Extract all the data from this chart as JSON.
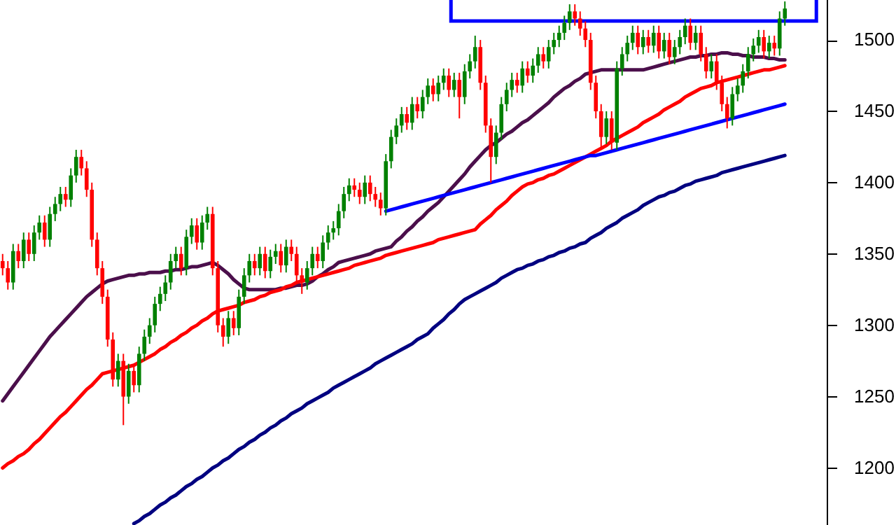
{
  "chart_data": {
    "type": "candlestick",
    "categories": [
      null,
      null,
      null,
      null,
      null,
      null,
      null,
      null,
      null,
      null,
      null,
      null,
      null,
      null,
      null,
      null,
      null,
      null,
      null,
      null,
      null,
      null,
      null,
      null,
      null,
      null,
      null,
      null,
      null,
      null,
      null,
      null,
      null,
      null,
      null,
      null,
      null,
      null,
      null,
      null,
      null,
      null,
      null,
      null,
      null,
      null,
      null,
      null,
      null,
      null,
      null,
      null,
      null,
      null,
      null,
      null,
      null,
      null,
      null,
      null,
      null,
      null,
      null,
      null,
      null,
      null,
      null,
      null,
      null,
      null,
      null,
      null,
      null,
      null,
      null,
      null,
      null,
      null,
      null,
      null,
      null,
      null,
      null,
      null,
      null,
      null,
      null,
      null,
      null,
      null,
      null,
      null,
      null,
      null,
      null,
      null,
      null,
      null,
      null,
      null,
      null,
      null,
      null,
      null,
      null,
      null,
      null,
      null,
      null,
      null,
      null,
      null,
      null,
      null,
      null,
      null,
      null,
      null,
      null,
      null,
      null,
      null,
      null,
      null,
      null,
      null,
      null,
      null,
      null,
      null,
      null,
      null,
      null,
      null,
      null,
      null,
      null,
      null,
      null,
      null,
      null,
      null,
      null,
      null,
      null,
      null,
      null,
      null,
      null,
      null
    ],
    "ohlc": [
      [
        1345,
        1350,
        1335,
        1340
      ],
      [
        1340,
        1345,
        1325,
        1330
      ],
      [
        1330,
        1357,
        1325,
        1352
      ],
      [
        1352,
        1357,
        1340,
        1345
      ],
      [
        1345,
        1365,
        1340,
        1360
      ],
      [
        1360,
        1365,
        1345,
        1350
      ],
      [
        1350,
        1370,
        1345,
        1365
      ],
      [
        1365,
        1377,
        1360,
        1372
      ],
      [
        1372,
        1377,
        1355,
        1360
      ],
      [
        1360,
        1383,
        1355,
        1378
      ],
      [
        1378,
        1390,
        1373,
        1385
      ],
      [
        1385,
        1397,
        1380,
        1392
      ],
      [
        1392,
        1397,
        1383,
        1388
      ],
      [
        1388,
        1410,
        1383,
        1405
      ],
      [
        1405,
        1423,
        1400,
        1418
      ],
      [
        1418,
        1423,
        1405,
        1410
      ],
      [
        1410,
        1415,
        1390,
        1395
      ],
      [
        1395,
        1400,
        1355,
        1360
      ],
      [
        1360,
        1365,
        1335,
        1340
      ],
      [
        1340,
        1345,
        1315,
        1320
      ],
      [
        1320,
        1325,
        1285,
        1290
      ],
      [
        1290,
        1295,
        1257,
        1262
      ],
      [
        1262,
        1280,
        1257,
        1275
      ],
      [
        1275,
        1280,
        1230,
        1250
      ],
      [
        1250,
        1273,
        1245,
        1268
      ],
      [
        1268,
        1273,
        1253,
        1258
      ],
      [
        1258,
        1285,
        1253,
        1280
      ],
      [
        1280,
        1297,
        1275,
        1292
      ],
      [
        1292,
        1305,
        1287,
        1300
      ],
      [
        1300,
        1320,
        1295,
        1315
      ],
      [
        1315,
        1327,
        1310,
        1322
      ],
      [
        1322,
        1335,
        1317,
        1330
      ],
      [
        1330,
        1350,
        1325,
        1345
      ],
      [
        1345,
        1355,
        1340,
        1350
      ],
      [
        1350,
        1355,
        1335,
        1340
      ],
      [
        1340,
        1367,
        1335,
        1362
      ],
      [
        1362,
        1375,
        1357,
        1370
      ],
      [
        1370,
        1375,
        1353,
        1358
      ],
      [
        1358,
        1377,
        1353,
        1372
      ],
      [
        1372,
        1383,
        1367,
        1378
      ],
      [
        1378,
        1383,
        1335,
        1340
      ],
      [
        1340,
        1345,
        1295,
        1300
      ],
      [
        1300,
        1305,
        1285,
        1292
      ],
      [
        1292,
        1310,
        1287,
        1305
      ],
      [
        1305,
        1310,
        1293,
        1298
      ],
      [
        1298,
        1325,
        1293,
        1320
      ],
      [
        1320,
        1340,
        1315,
        1335
      ],
      [
        1335,
        1350,
        1330,
        1345
      ],
      [
        1345,
        1350,
        1335,
        1340
      ],
      [
        1340,
        1355,
        1335,
        1350
      ],
      [
        1350,
        1355,
        1333,
        1338
      ],
      [
        1338,
        1353,
        1333,
        1348
      ],
      [
        1348,
        1357,
        1343,
        1352
      ],
      [
        1352,
        1357,
        1337,
        1342
      ],
      [
        1342,
        1360,
        1337,
        1355
      ],
      [
        1355,
        1360,
        1345,
        1350
      ],
      [
        1350,
        1355,
        1330,
        1335
      ],
      [
        1335,
        1340,
        1322,
        1330
      ],
      [
        1330,
        1345,
        1325,
        1340
      ],
      [
        1340,
        1355,
        1335,
        1350
      ],
      [
        1350,
        1355,
        1340,
        1345
      ],
      [
        1345,
        1363,
        1340,
        1358
      ],
      [
        1358,
        1370,
        1353,
        1365
      ],
      [
        1365,
        1373,
        1360,
        1368
      ],
      [
        1368,
        1385,
        1363,
        1380
      ],
      [
        1380,
        1397,
        1375,
        1392
      ],
      [
        1392,
        1403,
        1387,
        1398
      ],
      [
        1398,
        1403,
        1390,
        1395
      ],
      [
        1395,
        1400,
        1385,
        1390
      ],
      [
        1390,
        1405,
        1385,
        1400
      ],
      [
        1400,
        1405,
        1387,
        1392
      ],
      [
        1392,
        1397,
        1383,
        1388
      ],
      [
        1388,
        1393,
        1377,
        1382
      ],
      [
        1382,
        1420,
        1377,
        1415
      ],
      [
        1415,
        1437,
        1410,
        1432
      ],
      [
        1432,
        1445,
        1427,
        1440
      ],
      [
        1440,
        1453,
        1435,
        1448
      ],
      [
        1448,
        1453,
        1437,
        1442
      ],
      [
        1442,
        1460,
        1437,
        1455
      ],
      [
        1455,
        1460,
        1445,
        1450
      ],
      [
        1450,
        1465,
        1445,
        1460
      ],
      [
        1460,
        1473,
        1455,
        1468
      ],
      [
        1468,
        1473,
        1457,
        1462
      ],
      [
        1462,
        1475,
        1457,
        1470
      ],
      [
        1470,
        1480,
        1465,
        1475
      ],
      [
        1475,
        1480,
        1460,
        1465
      ],
      [
        1465,
        1477,
        1460,
        1472
      ],
      [
        1472,
        1477,
        1445,
        1460
      ],
      [
        1460,
        1483,
        1455,
        1478
      ],
      [
        1478,
        1490,
        1473,
        1485
      ],
      [
        1485,
        1503,
        1480,
        1495
      ],
      [
        1495,
        1500,
        1465,
        1470
      ],
      [
        1470,
        1475,
        1435,
        1440
      ],
      [
        1440,
        1445,
        1400,
        1418
      ],
      [
        1418,
        1440,
        1413,
        1435
      ],
      [
        1435,
        1460,
        1430,
        1455
      ],
      [
        1455,
        1470,
        1450,
        1465
      ],
      [
        1465,
        1477,
        1460,
        1472
      ],
      [
        1472,
        1477,
        1463,
        1468
      ],
      [
        1468,
        1485,
        1463,
        1480
      ],
      [
        1480,
        1485,
        1470,
        1475
      ],
      [
        1475,
        1487,
        1470,
        1482
      ],
      [
        1482,
        1495,
        1477,
        1490
      ],
      [
        1490,
        1495,
        1480,
        1485
      ],
      [
        1485,
        1500,
        1480,
        1495
      ],
      [
        1495,
        1505,
        1490,
        1500
      ],
      [
        1500,
        1510,
        1495,
        1505
      ],
      [
        1505,
        1517,
        1500,
        1512
      ],
      [
        1512,
        1525,
        1507,
        1520
      ],
      [
        1520,
        1525,
        1510,
        1515
      ],
      [
        1515,
        1520,
        1503,
        1508
      ],
      [
        1508,
        1513,
        1495,
        1500
      ],
      [
        1500,
        1505,
        1465,
        1470
      ],
      [
        1470,
        1475,
        1445,
        1450
      ],
      [
        1450,
        1455,
        1425,
        1432
      ],
      [
        1432,
        1450,
        1427,
        1445
      ],
      [
        1445,
        1450,
        1423,
        1428
      ],
      [
        1428,
        1485,
        1423,
        1480
      ],
      [
        1480,
        1495,
        1475,
        1490
      ],
      [
        1490,
        1503,
        1485,
        1498
      ],
      [
        1498,
        1510,
        1493,
        1505
      ],
      [
        1505,
        1510,
        1490,
        1495
      ],
      [
        1495,
        1507,
        1490,
        1502
      ],
      [
        1502,
        1507,
        1491,
        1496
      ],
      [
        1496,
        1510,
        1491,
        1505
      ],
      [
        1505,
        1510,
        1487,
        1492
      ],
      [
        1492,
        1505,
        1487,
        1500
      ],
      [
        1500,
        1505,
        1483,
        1488
      ],
      [
        1488,
        1500,
        1483,
        1495
      ],
      [
        1495,
        1507,
        1490,
        1502
      ],
      [
        1502,
        1515,
        1497,
        1510
      ],
      [
        1510,
        1515,
        1493,
        1498
      ],
      [
        1498,
        1510,
        1493,
        1505
      ],
      [
        1505,
        1510,
        1485,
        1490
      ],
      [
        1490,
        1495,
        1473,
        1478
      ],
      [
        1478,
        1490,
        1473,
        1485
      ],
      [
        1485,
        1490,
        1465,
        1470
      ],
      [
        1470,
        1475,
        1450,
        1455
      ],
      [
        1455,
        1460,
        1438,
        1445
      ],
      [
        1445,
        1467,
        1440,
        1462
      ],
      [
        1462,
        1473,
        1457,
        1468
      ],
      [
        1468,
        1483,
        1463,
        1478
      ],
      [
        1478,
        1495,
        1473,
        1490
      ],
      [
        1490,
        1501,
        1485,
        1496
      ],
      [
        1496,
        1507,
        1491,
        1502
      ],
      [
        1502,
        1507,
        1487,
        1492
      ],
      [
        1492,
        1503,
        1487,
        1498
      ],
      [
        1498,
        1503,
        1489,
        1494
      ],
      [
        1494,
        1520,
        1489,
        1515
      ],
      [
        1515,
        1527,
        1510,
        1522
      ]
    ],
    "series": [
      {
        "type": "line",
        "color": "#4b0f4b",
        "values": [
          1247,
          1252,
          1257,
          1262,
          1267,
          1272,
          1277,
          1282,
          1287,
          1292,
          1296,
          1300,
          1304,
          1308,
          1312,
          1316,
          1320,
          1323,
          1326,
          1329,
          1331,
          1332,
          1333,
          1334,
          1335,
          1335,
          1336,
          1336,
          1337,
          1337,
          1337,
          1338,
          1338,
          1339,
          1339,
          1340,
          1341,
          1341,
          1342,
          1343,
          1344,
          1342,
          1339,
          1336,
          1332,
          1329,
          1326,
          1325,
          1325,
          1325,
          1325,
          1325,
          1325,
          1326,
          1326,
          1327,
          1328,
          1328,
          1329,
          1331,
          1334,
          1336,
          1339,
          1341,
          1344,
          1345,
          1346,
          1347,
          1348,
          1349,
          1350,
          1352,
          1353,
          1354,
          1355,
          1359,
          1362,
          1366,
          1369,
          1373,
          1376,
          1380,
          1383,
          1386,
          1390,
          1394,
          1398,
          1402,
          1406,
          1411,
          1415,
          1419,
          1423,
          1426,
          1428,
          1431,
          1434,
          1436,
          1439,
          1442,
          1444,
          1447,
          1450,
          1453,
          1456,
          1460,
          1463,
          1466,
          1468,
          1471,
          1473,
          1476,
          1477,
          1478,
          1479,
          1479,
          1479,
          1479,
          1479,
          1479,
          1479,
          1479,
          1479,
          1480,
          1481,
          1482,
          1483,
          1484,
          1485,
          1486,
          1487,
          1488,
          1488,
          1489,
          1489,
          1490,
          1490,
          1491,
          1491,
          1490,
          1490,
          1489,
          1489,
          1488,
          1488,
          1488,
          1487,
          1487,
          1486,
          1486
        ]
      },
      {
        "type": "line",
        "color": "#ff0000",
        "values": [
          1200,
          1203,
          1205,
          1208,
          1210,
          1213,
          1217,
          1220,
          1224,
          1228,
          1232,
          1236,
          1239,
          1243,
          1247,
          1251,
          1255,
          1258,
          1262,
          1266,
          1267,
          1268,
          1269,
          1270,
          1271,
          1272,
          1274,
          1276,
          1278,
          1280,
          1283,
          1285,
          1288,
          1290,
          1293,
          1295,
          1298,
          1300,
          1303,
          1305,
          1308,
          1310,
          1311,
          1312,
          1313,
          1314,
          1316,
          1317,
          1318,
          1320,
          1321,
          1323,
          1324,
          1325,
          1327,
          1328,
          1330,
          1331,
          1332,
          1333,
          1334,
          1335,
          1336,
          1337,
          1338,
          1339,
          1340,
          1342,
          1343,
          1344,
          1345,
          1346,
          1347,
          1349,
          1350,
          1351,
          1352,
          1353,
          1354,
          1355,
          1356,
          1357,
          1358,
          1360,
          1361,
          1362,
          1363,
          1364,
          1365,
          1366,
          1367,
          1371,
          1374,
          1377,
          1381,
          1384,
          1387,
          1391,
          1394,
          1397,
          1399,
          1400,
          1402,
          1403,
          1405,
          1406,
          1408,
          1410,
          1412,
          1414,
          1416,
          1418,
          1420,
          1422,
          1424,
          1426,
          1429,
          1431,
          1433,
          1435,
          1437,
          1439,
          1442,
          1444,
          1446,
          1448,
          1451,
          1453,
          1455,
          1457,
          1460,
          1462,
          1464,
          1466,
          1467,
          1468,
          1470,
          1471,
          1472,
          1473,
          1474,
          1475,
          1476,
          1477,
          1478,
          1479,
          1479,
          1480,
          1481,
          1482
        ]
      },
      {
        "type": "line",
        "color": "#000080",
        "values": [
          null,
          null,
          null,
          null,
          null,
          null,
          null,
          null,
          null,
          null,
          null,
          null,
          null,
          null,
          null,
          null,
          null,
          null,
          null,
          null,
          null,
          null,
          null,
          null,
          null,
          1161,
          1163,
          1166,
          1168,
          1171,
          1174,
          1176,
          1179,
          1181,
          1184,
          1187,
          1189,
          1192,
          1194,
          1197,
          1200,
          1202,
          1205,
          1207,
          1210,
          1213,
          1215,
          1218,
          1220,
          1223,
          1225,
          1228,
          1230,
          1233,
          1235,
          1238,
          1240,
          1242,
          1245,
          1247,
          1249,
          1251,
          1253,
          1256,
          1258,
          1260,
          1262,
          1264,
          1266,
          1268,
          1270,
          1273,
          1275,
          1277,
          1279,
          1281,
          1283,
          1285,
          1287,
          1290,
          1292,
          1294,
          1298,
          1301,
          1304,
          1308,
          1311,
          1315,
          1318,
          1320,
          1322,
          1324,
          1326,
          1328,
          1330,
          1333,
          1335,
          1337,
          1339,
          1340,
          1342,
          1343,
          1345,
          1346,
          1348,
          1349,
          1351,
          1352,
          1354,
          1355,
          1357,
          1358,
          1361,
          1363,
          1365,
          1368,
          1370,
          1372,
          1375,
          1377,
          1379,
          1381,
          1384,
          1386,
          1388,
          1390,
          1391,
          1393,
          1394,
          1396,
          1398,
          1399,
          1401,
          1402,
          1403,
          1404,
          1405,
          1407,
          1408,
          1409,
          1410,
          1411,
          1412,
          1413,
          1414,
          1415,
          1416,
          1417,
          1418,
          1419
        ]
      },
      {
        "type": "line",
        "color": "#0000ff",
        "values": [
          null,
          null,
          null,
          null,
          null,
          null,
          null,
          null,
          null,
          null,
          null,
          null,
          null,
          null,
          null,
          null,
          null,
          null,
          null,
          null,
          null,
          null,
          null,
          null,
          null,
          null,
          null,
          null,
          null,
          null,
          null,
          null,
          null,
          null,
          null,
          null,
          null,
          null,
          null,
          null,
          null,
          null,
          null,
          null,
          null,
          null,
          null,
          null,
          null,
          null,
          null,
          null,
          null,
          null,
          null,
          null,
          null,
          null,
          null,
          null,
          null,
          null,
          null,
          null,
          null,
          null,
          null,
          null,
          null,
          null,
          null,
          null,
          null,
          1380,
          1381,
          1382,
          1383,
          1384,
          1385,
          1386,
          1387,
          1388,
          1389,
          1390,
          1391,
          1392,
          1393,
          1394,
          1395,
          1396,
          1397,
          1398,
          1399,
          1400,
          1401,
          1402,
          1403,
          1404,
          1405,
          1406,
          1407,
          1408,
          1409,
          1410,
          1411,
          1412,
          1413,
          1414,
          1415,
          1416,
          1417,
          1418,
          1419,
          1419,
          1420,
          1421,
          1422,
          1423,
          1424,
          1425,
          1426,
          1427,
          1428,
          1429,
          1430,
          1431,
          1432,
          1433,
          1434,
          1435,
          1436,
          1437,
          1438,
          1439,
          1440,
          1441,
          1442,
          1443,
          1444,
          1445,
          1446,
          1447,
          1448,
          1449,
          1450,
          1451,
          1452,
          1453,
          1454,
          1455
        ]
      }
    ],
    "ylim": [
      1160,
      1528
    ],
    "yticks": [
      1200,
      1250,
      1300,
      1350,
      1400,
      1450,
      1500
    ],
    "tick_labels": "y"
  }
}
